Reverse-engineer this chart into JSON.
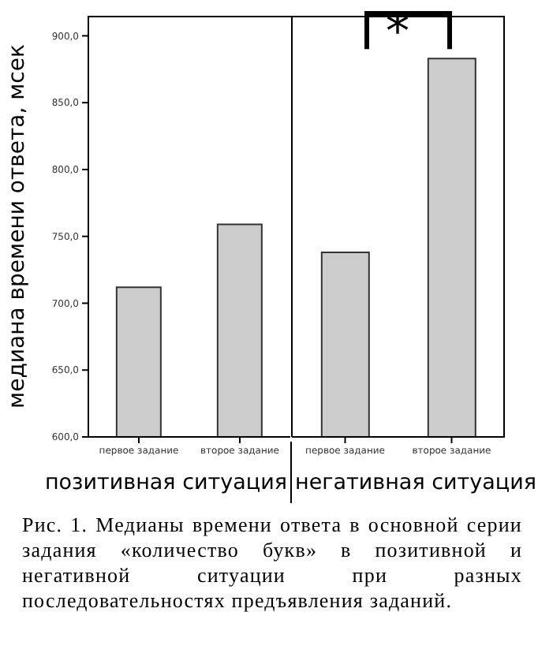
{
  "chart_data": [
    {
      "type": "bar",
      "categories": [
        "первое задание",
        "второе задание"
      ],
      "values": [
        712,
        759
      ],
      "color": "#cccccc",
      "xlabel": "позитивная ситуация",
      "ylabel": "медиана времени ответа, мсек",
      "ylim": [
        600,
        915
      ],
      "yticks": [
        {
          "value": 600,
          "label": "600,0"
        },
        {
          "value": 650,
          "label": "650,0"
        },
        {
          "value": 700,
          "label": "700,0"
        },
        {
          "value": 750,
          "label": "750,0"
        },
        {
          "value": 800,
          "label": "800,0"
        },
        {
          "value": 850,
          "label": "850,0"
        },
        {
          "value": 900,
          "label": "900,0"
        }
      ],
      "annotations": [
        "Рис. 1. Медианы времени ответа в основной серии задания «количество букв» в позитивной и негативной ситуации при разных последовательностях предъявления заданий."
      ]
    },
    {
      "type": "bar",
      "categories": [
        "первое задание",
        "второе задание"
      ],
      "values": [
        738,
        883
      ],
      "color": "#cccccc",
      "xlabel": "негативная ситуация",
      "ylim": [
        600,
        915
      ],
      "tick_labels": "x",
      "annotations": [
        "*"
      ]
    }
  ]
}
